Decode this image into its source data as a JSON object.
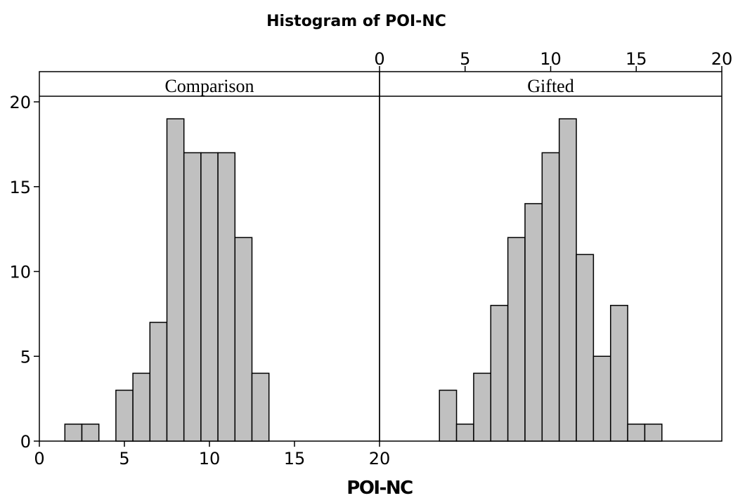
{
  "chart_data": {
    "type": "bar",
    "title": "Histogram of POI-NC",
    "xlabel": "POI-NC",
    "ylabel": "",
    "ylim": [
      0,
      20
    ],
    "y_ticks": [
      "0",
      "5",
      "10",
      "15",
      "20"
    ],
    "grid": false,
    "bin_width": 1,
    "panels": [
      {
        "name": "Comparison",
        "xlim": [
          0,
          20
        ],
        "x_ticks": [
          "0",
          "5",
          "10",
          "15",
          "20"
        ],
        "x_ticks_position": "bottom",
        "bins": [
          {
            "x": 2,
            "count": 1
          },
          {
            "x": 3,
            "count": 1
          },
          {
            "x": 4,
            "count": 0
          },
          {
            "x": 5,
            "count": 3
          },
          {
            "x": 6,
            "count": 4
          },
          {
            "x": 7,
            "count": 7
          },
          {
            "x": 8,
            "count": 19
          },
          {
            "x": 9,
            "count": 17
          },
          {
            "x": 10,
            "count": 17
          },
          {
            "x": 11,
            "count": 17
          },
          {
            "x": 12,
            "count": 12
          },
          {
            "x": 13,
            "count": 4
          },
          {
            "x": 14,
            "count": 0
          },
          {
            "x": 15,
            "count": 0
          },
          {
            "x": 16,
            "count": 0
          }
        ]
      },
      {
        "name": "Gifted",
        "xlim": [
          0,
          20
        ],
        "x_ticks": [
          "0",
          "5",
          "10",
          "15",
          "20"
        ],
        "x_ticks_position": "top",
        "bins": [
          {
            "x": 2,
            "count": 0
          },
          {
            "x": 3,
            "count": 0
          },
          {
            "x": 4,
            "count": 3
          },
          {
            "x": 5,
            "count": 1
          },
          {
            "x": 6,
            "count": 4
          },
          {
            "x": 7,
            "count": 8
          },
          {
            "x": 8,
            "count": 12
          },
          {
            "x": 9,
            "count": 14
          },
          {
            "x": 10,
            "count": 17
          },
          {
            "x": 11,
            "count": 19
          },
          {
            "x": 12,
            "count": 11
          },
          {
            "x": 13,
            "count": 5
          },
          {
            "x": 14,
            "count": 8
          },
          {
            "x": 15,
            "count": 1
          },
          {
            "x": 16,
            "count": 1
          }
        ]
      }
    ]
  }
}
